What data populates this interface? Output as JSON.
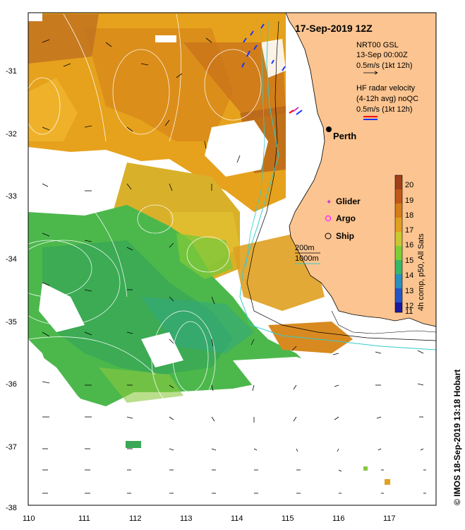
{
  "title": "17-Sep-2019 12Z",
  "credit": "© IMOS 18-Sep-2019 13:18 Hobart",
  "city": "Perth",
  "gsl_legend": {
    "line1": "NRT00 GSL",
    "line2": "13-Sep 00:00Z",
    "line3": "0.5m/s (1kt 12h)"
  },
  "radar_legend": {
    "line1": "HF radar velocity",
    "line2": "(4-12h avg) noQC",
    "line3": "0.5m/s (1kt 12h)"
  },
  "platforms": [
    {
      "label": "Glider",
      "color": "#cc33cc"
    },
    {
      "label": "Argo",
      "color": "#ff33ff"
    },
    {
      "label": "Ship",
      "color": "#000000"
    }
  ],
  "isobaths": [
    {
      "label": "200m",
      "color": "#000000"
    },
    {
      "label": "1000m",
      "color": "#00cccc"
    }
  ],
  "colorbar": {
    "label": "4h comp, p50, All Sats",
    "min": 11,
    "max": 20,
    "ticks": [
      "20",
      "19",
      "18",
      "17",
      "16",
      "15",
      "14",
      "13",
      "12",
      "11"
    ],
    "colors": [
      "#a0401a",
      "#c0581a",
      "#d57d1a",
      "#e0a020",
      "#c8c830",
      "#7ccf38",
      "#35b86a",
      "#2a8fc0",
      "#2455c8",
      "#1a1a9e"
    ]
  },
  "lat_ticks": [
    "-31",
    "-32",
    "-33",
    "-34",
    "-35",
    "-36",
    "-37",
    "-38"
  ],
  "lon_ticks": [
    "110",
    "111",
    "112",
    "113",
    "114",
    "115",
    "116",
    "117"
  ],
  "colors": {
    "land": "#fbc490",
    "coast_line": "#000000",
    "isobath_1000": "#33cccc",
    "sst_warm": "#d88a20",
    "sst_mid": "#e0a520",
    "sst_cool": "#4cb84c",
    "radar_red": "#ff0000",
    "radar_blue": "#1a33ff"
  }
}
